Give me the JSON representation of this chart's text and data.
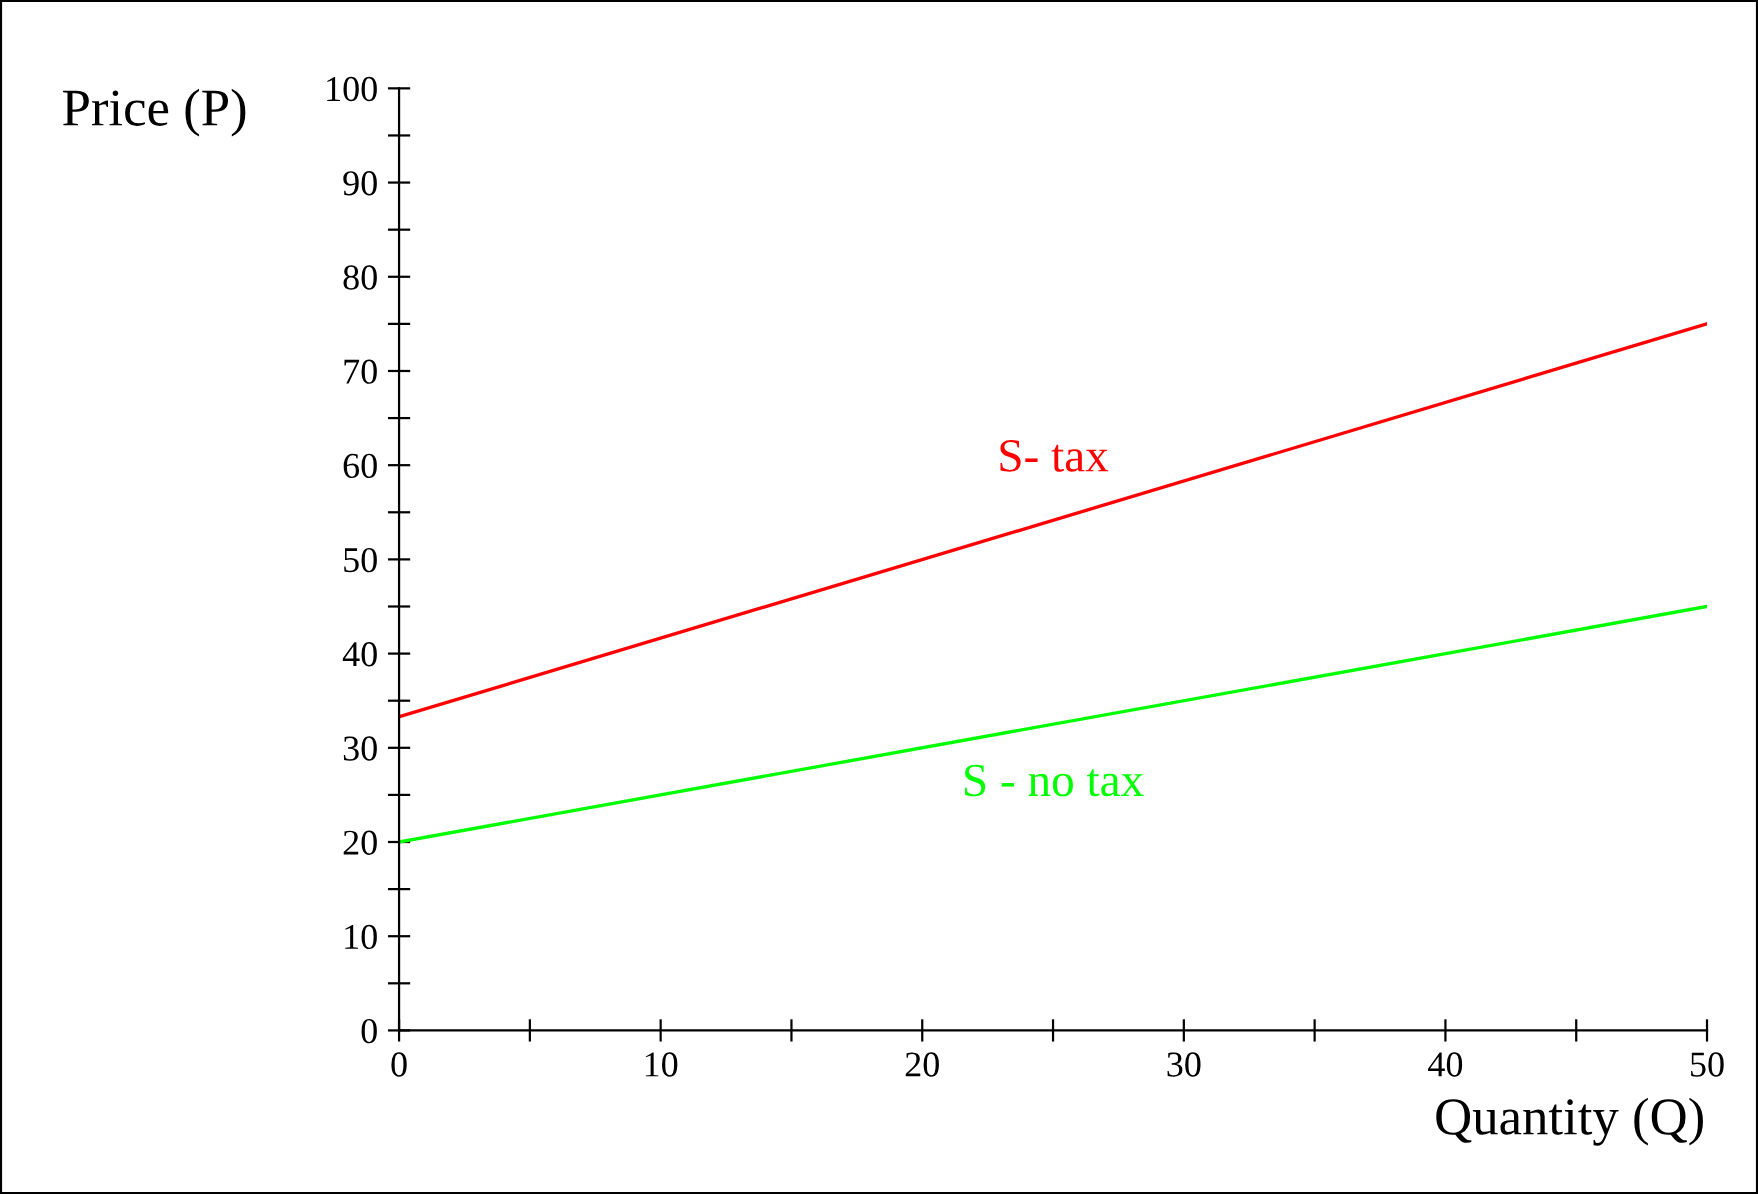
{
  "chart_data": {
    "type": "line",
    "xlabel": "Quantity (Q)",
    "ylabel": "Price (P)",
    "xlim": [
      0,
      50
    ],
    "ylim": [
      0,
      100
    ],
    "xticks": [
      0,
      {
        "value": 5,
        "label": null
      },
      10,
      {
        "value": 15,
        "label": null
      },
      20,
      {
        "value": 25,
        "label": null
      },
      30,
      {
        "value": 35,
        "label": null
      },
      40,
      {
        "value": 45,
        "label": null
      },
      50
    ],
    "yticks": [
      0,
      {
        "value": 5,
        "label": null
      },
      10,
      {
        "value": 15,
        "label": null
      },
      20,
      {
        "value": 25,
        "label": null
      },
      30,
      {
        "value": 35,
        "label": null
      },
      40,
      {
        "value": 45,
        "label": null
      },
      50,
      {
        "value": 55,
        "label": null
      },
      60,
      {
        "value": 65,
        "label": null
      },
      70,
      {
        "value": 75,
        "label": null
      },
      80,
      {
        "value": 85,
        "label": null
      },
      90,
      {
        "value": 95,
        "label": null
      },
      100
    ],
    "x": [
      0,
      50
    ],
    "series": [
      {
        "name": "S- tax",
        "color": "#ff0000",
        "values": [
          33.3,
          75
        ]
      },
      {
        "name": "S - no tax",
        "color": "#00ff00",
        "values": [
          20,
          45
        ]
      }
    ],
    "grid": false,
    "legend": false,
    "marker": "none",
    "line_style": "solid"
  }
}
